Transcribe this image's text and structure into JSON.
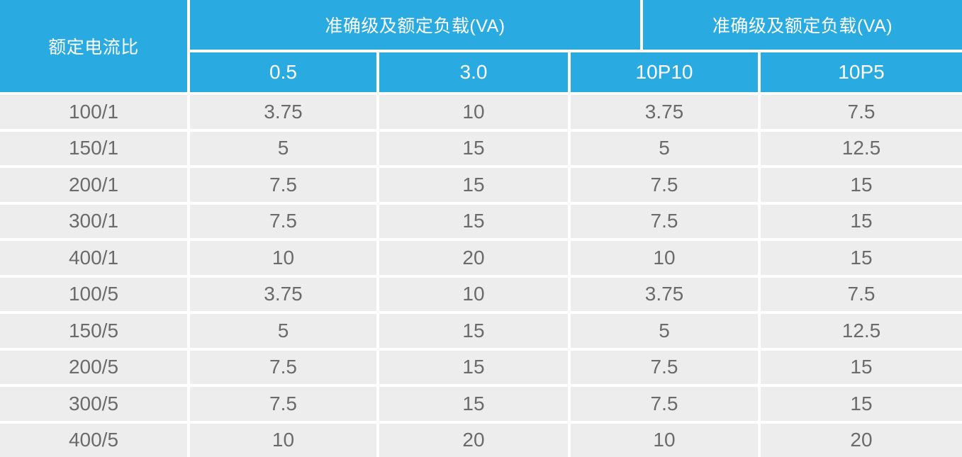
{
  "table": {
    "corner_header": "额定电流比",
    "group_header_left": "准确级及额定负载(VA)",
    "group_header_right": "准确级及额定负载(VA)",
    "sub_headers": [
      "0.5",
      "3.0",
      "10P10",
      "10P5"
    ],
    "rows": [
      {
        "ratio": "100/1",
        "values": [
          "3.75",
          "10",
          "3.75",
          "7.5"
        ]
      },
      {
        "ratio": "150/1",
        "values": [
          "5",
          "15",
          "5",
          "12.5"
        ]
      },
      {
        "ratio": "200/1",
        "values": [
          "7.5",
          "15",
          "7.5",
          "15"
        ]
      },
      {
        "ratio": "300/1",
        "values": [
          "7.5",
          "15",
          "7.5",
          "15"
        ]
      },
      {
        "ratio": "400/1",
        "values": [
          "10",
          "20",
          "10",
          "15"
        ]
      },
      {
        "ratio": "100/5",
        "values": [
          "3.75",
          "10",
          "3.75",
          "7.5"
        ]
      },
      {
        "ratio": "150/5",
        "values": [
          "5",
          "15",
          "5",
          "12.5"
        ]
      },
      {
        "ratio": "200/5",
        "values": [
          "7.5",
          "15",
          "7.5",
          "15"
        ]
      },
      {
        "ratio": "300/5",
        "values": [
          "7.5",
          "15",
          "7.5",
          "15"
        ]
      },
      {
        "ratio": "400/5",
        "values": [
          "10",
          "20",
          "10",
          "20"
        ]
      }
    ]
  },
  "colors": {
    "header_bg": "#29abe2",
    "header_text": "#ffffff",
    "row_bg": "#ededed",
    "row_text": "#6b6b6b",
    "divider": "#ffffff"
  }
}
